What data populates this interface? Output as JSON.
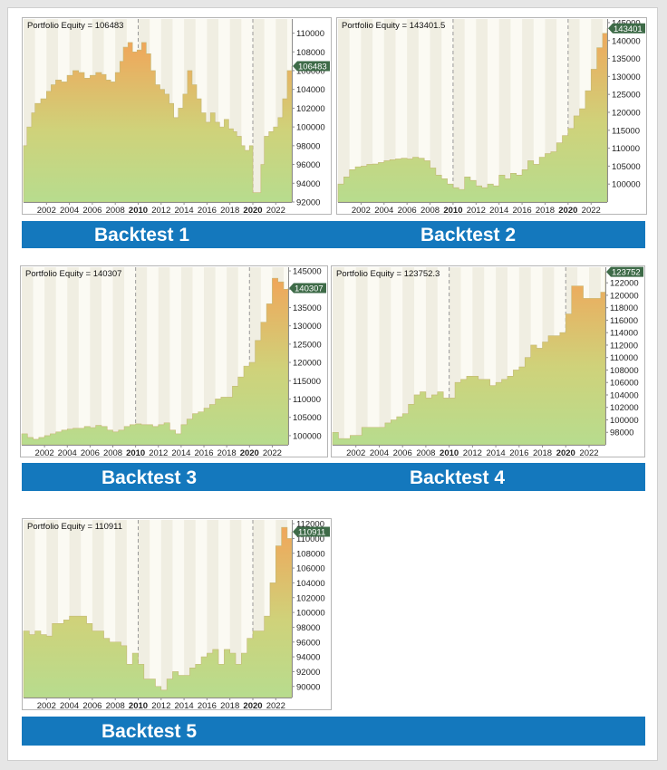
{
  "banners": [
    {
      "labels": [
        "Backtest 1",
        "Backtest 2"
      ]
    },
    {
      "labels": [
        "Backtest 3",
        "Backtest 4"
      ]
    },
    {
      "labels": [
        "Backtest 5"
      ]
    }
  ],
  "colors": {
    "banner": "#1478bd",
    "equity_high": "#f0a65a",
    "equity_low": "#b7dc8e",
    "marker": "#3e6b48"
  },
  "chart_data": [
    {
      "type": "area",
      "title": "Portfolio Equity = 106483",
      "value_label": "106483",
      "current_value": 106483,
      "x_range": [
        2000,
        2023.4
      ],
      "ylim": [
        92000,
        111500
      ],
      "yticks": [
        92000,
        94000,
        96000,
        98000,
        100000,
        102000,
        104000,
        106000,
        108000,
        110000
      ],
      "xticks": [
        "2002",
        "2004",
        "2006",
        "2008",
        "2010",
        "2012",
        "2014",
        "2016",
        "2018",
        "2020",
        "2022"
      ],
      "x": [
        2000,
        2000.3,
        2000.7,
        2001,
        2001.5,
        2002,
        2002.4,
        2002.8,
        2003.3,
        2003.8,
        2004.3,
        2004.8,
        2005.3,
        2005.8,
        2006.3,
        2006.8,
        2007.2,
        2007.6,
        2008,
        2008.4,
        2008.7,
        2009.1,
        2009.5,
        2009.9,
        2010.3,
        2010.7,
        2011.1,
        2011.5,
        2011.9,
        2012.3,
        2012.7,
        2013.1,
        2013.5,
        2013.9,
        2014.3,
        2014.7,
        2015.1,
        2015.5,
        2015.9,
        2016.3,
        2016.7,
        2017.1,
        2017.5,
        2017.9,
        2018.3,
        2018.6,
        2019,
        2019.3,
        2019.7,
        2020,
        2020.3,
        2020.7,
        2021,
        2021.4,
        2021.8,
        2022.2,
        2022.6,
        2023,
        2023.4
      ],
      "y": [
        98000,
        100000,
        101500,
        102500,
        103000,
        103800,
        104500,
        105000,
        104800,
        105500,
        106000,
        105800,
        105200,
        105500,
        105800,
        105600,
        105000,
        104800,
        105800,
        107000,
        108500,
        109000,
        108000,
        108200,
        109000,
        107800,
        106000,
        104500,
        104000,
        103500,
        102500,
        101000,
        102000,
        103500,
        106000,
        104500,
        103000,
        101500,
        100500,
        101500,
        100500,
        100000,
        100800,
        99800,
        99500,
        99000,
        98000,
        97500,
        98000,
        93000,
        93000,
        96000,
        99000,
        99500,
        100000,
        101000,
        103000,
        106000,
        106483
      ]
    },
    {
      "type": "area",
      "title": "Portfolio Equity = 143401.5",
      "value_label": "143401",
      "current_value": 143401.5,
      "x_range": [
        2000,
        2023.4
      ],
      "ylim": [
        95000,
        146000
      ],
      "yticks": [
        100000,
        105000,
        110000,
        115000,
        120000,
        125000,
        130000,
        135000,
        140000,
        145000
      ],
      "xticks": [
        "2002",
        "2004",
        "2006",
        "2008",
        "2010",
        "2012",
        "2014",
        "2016",
        "2018",
        "2020",
        "2022"
      ],
      "x": [
        2000,
        2000.5,
        2001,
        2001.5,
        2002,
        2002.5,
        2003,
        2003.5,
        2004,
        2004.5,
        2005,
        2005.5,
        2006,
        2006.5,
        2007,
        2007.5,
        2008,
        2008.5,
        2009,
        2009.5,
        2010,
        2010.5,
        2011,
        2011.5,
        2012,
        2012.5,
        2013,
        2013.5,
        2014,
        2014.5,
        2015,
        2015.5,
        2016,
        2016.5,
        2017,
        2017.5,
        2018,
        2018.5,
        2019,
        2019.5,
        2020,
        2020.5,
        2021,
        2021.5,
        2022,
        2022.5,
        2023,
        2023.4
      ],
      "y": [
        100000,
        102000,
        104000,
        104800,
        105000,
        105500,
        105600,
        106000,
        106500,
        106800,
        107000,
        107200,
        107000,
        107500,
        107200,
        106500,
        104500,
        102500,
        101500,
        100000,
        99000,
        98500,
        102000,
        101000,
        99500,
        99000,
        100000,
        99500,
        102500,
        101500,
        103000,
        102500,
        104000,
        106500,
        105500,
        107500,
        108500,
        109000,
        111500,
        113500,
        115500,
        119000,
        121000,
        126000,
        132000,
        138000,
        142000,
        143401.5
      ]
    },
    {
      "type": "area",
      "title": "Portfolio Equity = 140307",
      "value_label": "140307",
      "current_value": 140307,
      "x_range": [
        2000,
        2023.4
      ],
      "ylim": [
        97500,
        146000
      ],
      "yticks": [
        100000,
        105000,
        110000,
        115000,
        120000,
        125000,
        130000,
        135000,
        140000,
        145000
      ],
      "xticks": [
        "2002",
        "2004",
        "2006",
        "2008",
        "2010",
        "2012",
        "2014",
        "2016",
        "2018",
        "2020",
        "2022"
      ],
      "x": [
        2000,
        2000.5,
        2001,
        2001.5,
        2002,
        2002.5,
        2003,
        2003.5,
        2004,
        2004.5,
        2005,
        2005.5,
        2006,
        2006.5,
        2007,
        2007.5,
        2008,
        2008.5,
        2009,
        2009.5,
        2010,
        2010.5,
        2011,
        2011.5,
        2012,
        2012.5,
        2013,
        2013.5,
        2014,
        2014.5,
        2015,
        2015.5,
        2016,
        2016.5,
        2017,
        2017.5,
        2018,
        2018.5,
        2019,
        2019.5,
        2020,
        2020.5,
        2021,
        2021.5,
        2022,
        2022.5,
        2023,
        2023.4
      ],
      "y": [
        100500,
        99500,
        99000,
        99500,
        100000,
        100500,
        101000,
        101500,
        101800,
        102000,
        102000,
        102500,
        102200,
        102800,
        102500,
        101500,
        101000,
        101500,
        102500,
        103000,
        103200,
        103000,
        103000,
        102500,
        103000,
        103500,
        101500,
        100500,
        103000,
        104500,
        106000,
        106500,
        107500,
        108500,
        110000,
        110500,
        110500,
        113500,
        116000,
        119000,
        120000,
        126000,
        131000,
        136000,
        143000,
        142000,
        140000,
        140307
      ]
    },
    {
      "type": "area",
      "title": "Portfolio Equity = 123752.3",
      "value_label": "123752",
      "current_value": 123752.3,
      "x_range": [
        2000,
        2023.4
      ],
      "ylim": [
        96000,
        124500
      ],
      "yticks": [
        98000,
        100000,
        102000,
        104000,
        106000,
        108000,
        110000,
        112000,
        114000,
        116000,
        118000,
        120000,
        122000
      ],
      "xticks": [
        "2002",
        "2004",
        "2006",
        "2008",
        "2010",
        "2012",
        "2014",
        "2016",
        "2018",
        "2020",
        "2022"
      ],
      "x": [
        2000,
        2000.5,
        2001,
        2001.5,
        2002,
        2002.5,
        2003,
        2003.5,
        2004,
        2004.5,
        2005,
        2005.5,
        2006,
        2006.5,
        2007,
        2007.5,
        2008,
        2008.5,
        2009,
        2009.5,
        2010,
        2010.5,
        2011,
        2011.5,
        2012,
        2012.5,
        2013,
        2013.5,
        2014,
        2014.5,
        2015,
        2015.5,
        2016,
        2016.5,
        2017,
        2017.5,
        2018,
        2018.5,
        2019,
        2019.5,
        2020,
        2020.5,
        2021,
        2021.5,
        2022,
        2022.5,
        2023,
        2023.4
      ],
      "y": [
        98000,
        97000,
        97000,
        97500,
        97500,
        98800,
        98800,
        98800,
        98800,
        99500,
        100000,
        100500,
        101000,
        102500,
        104000,
        104500,
        103500,
        104000,
        104500,
        103500,
        103500,
        106000,
        106500,
        107000,
        107000,
        106500,
        106500,
        105500,
        106000,
        106500,
        107000,
        108000,
        108500,
        110000,
        112000,
        111500,
        112500,
        113500,
        113500,
        114000,
        117000,
        121500,
        121500,
        119500,
        119500,
        119500,
        120500,
        123752.3
      ]
    },
    {
      "type": "area",
      "title": "Portfolio Equity = 110911",
      "value_label": "110911",
      "current_value": 110911,
      "x_range": [
        2000,
        2023.4
      ],
      "ylim": [
        88500,
        112500
      ],
      "yticks": [
        90000,
        92000,
        94000,
        96000,
        98000,
        100000,
        102000,
        104000,
        106000,
        108000,
        110000,
        112000
      ],
      "xticks": [
        "2002",
        "2004",
        "2006",
        "2008",
        "2010",
        "2012",
        "2014",
        "2016",
        "2018",
        "2020",
        "2022"
      ],
      "x": [
        2000,
        2000.5,
        2001,
        2001.5,
        2002,
        2002.5,
        2003,
        2003.5,
        2004,
        2004.5,
        2005,
        2005.5,
        2006,
        2006.5,
        2007,
        2007.5,
        2008,
        2008.5,
        2009,
        2009.5,
        2010,
        2010.5,
        2011,
        2011.5,
        2012,
        2012.5,
        2013,
        2013.5,
        2014,
        2014.5,
        2015,
        2015.5,
        2016,
        2016.5,
        2017,
        2017.5,
        2018,
        2018.5,
        2019,
        2019.5,
        2020,
        2020.5,
        2021,
        2021.5,
        2022,
        2022.5,
        2023,
        2023.4
      ],
      "y": [
        97500,
        97000,
        97500,
        97000,
        96800,
        98500,
        98500,
        99000,
        99500,
        99500,
        99500,
        98500,
        97500,
        97500,
        96500,
        96000,
        96000,
        95500,
        93000,
        94500,
        93000,
        91000,
        91000,
        90000,
        89500,
        91000,
        92000,
        91500,
        91500,
        92500,
        93000,
        94000,
        94500,
        95000,
        93000,
        95000,
        94500,
        93000,
        94500,
        96500,
        97500,
        97500,
        99500,
        104000,
        109000,
        111500,
        110000,
        110911
      ]
    }
  ]
}
